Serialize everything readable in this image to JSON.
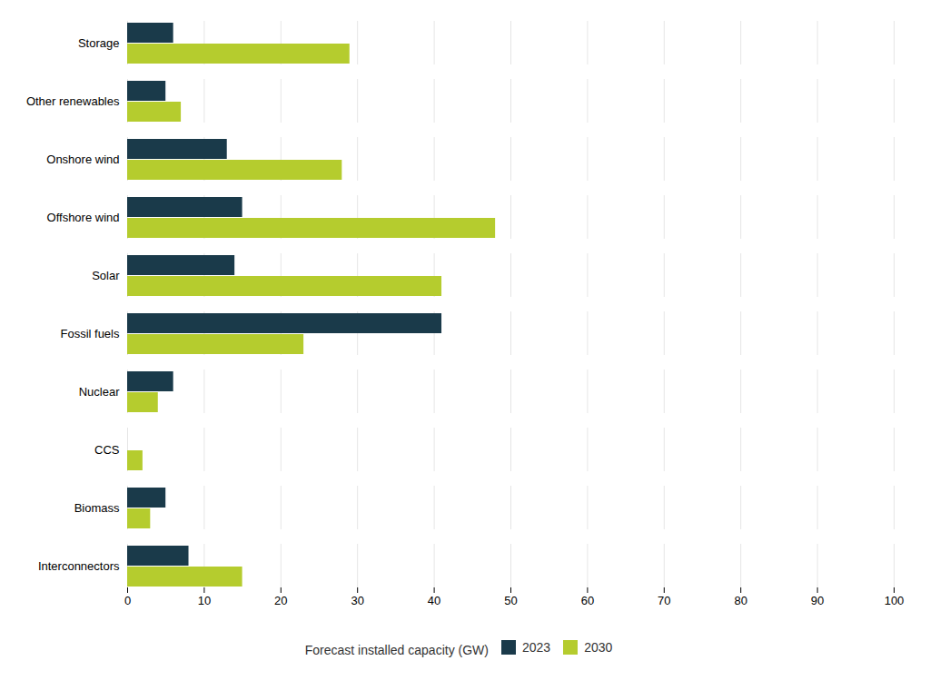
{
  "chart_data": {
    "type": "bar",
    "orientation": "horizontal",
    "categories": [
      "Storage",
      "Other renewables",
      "Onshore wind",
      "Offshore wind",
      "Solar",
      "Fossil fuels",
      "Nuclear",
      "CCS",
      "Biomass",
      "Interconnectors"
    ],
    "series": [
      {
        "name": "2023",
        "color": "#1a3a4a",
        "values": [
          6,
          5,
          13,
          15,
          14,
          41,
          6,
          0,
          5,
          8
        ]
      },
      {
        "name": "2030",
        "color": "#b5cc2e",
        "values": [
          29,
          7,
          28,
          48,
          41,
          23,
          4,
          2,
          3,
          15
        ]
      }
    ],
    "xlabel": "Forecast installed capacity (GW)",
    "xlim": [
      0,
      100
    ],
    "xticks": [
      0,
      10,
      20,
      30,
      40,
      50,
      60,
      70,
      80,
      90,
      100
    ],
    "grid": true,
    "legend": "bottom"
  }
}
